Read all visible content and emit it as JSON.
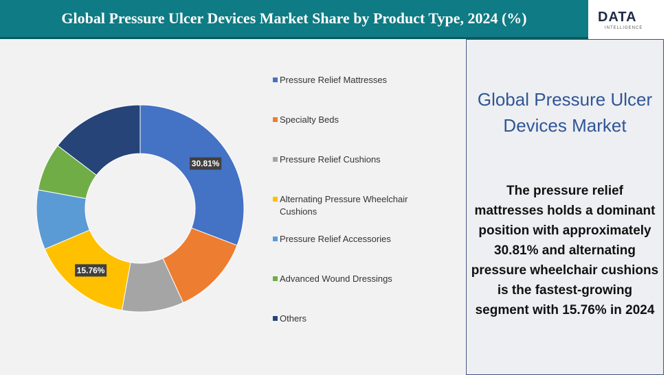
{
  "chart_data": {
    "type": "donut",
    "title": "Global Pressure Ulcer Devices Market Share by Product Type, 2024 (%)",
    "categories": [
      "Pressure Relief Mattresses",
      "Specialty Beds",
      "Pressure Relief Cushions",
      "Alternating Pressure Wheelchair Cushions",
      "Pressure Relief Accessories",
      "Advanced Wound Dressings",
      "Others"
    ],
    "values": [
      30.81,
      12.4,
      9.6,
      15.76,
      9.3,
      7.5,
      14.63
    ],
    "value_labels": [
      "30.81%",
      null,
      null,
      "15.76%",
      null,
      null,
      null
    ],
    "colors": [
      "#4472c4",
      "#ed7d31",
      "#a5a5a5",
      "#ffc000",
      "#5b9bd5",
      "#70ad47",
      "#264478"
    ],
    "legend": "right"
  },
  "logo": {
    "name": "DATA",
    "sub": "INTELLIGENCE"
  },
  "panel": {
    "heading": "Global Pressure Ulcer Devices Market",
    "text": "The pressure relief mattresses holds a dominant position with approximately 30.81% and alternating pressure wheelchair cushions is the fastest-growing segment with 15.76% in 2024"
  }
}
